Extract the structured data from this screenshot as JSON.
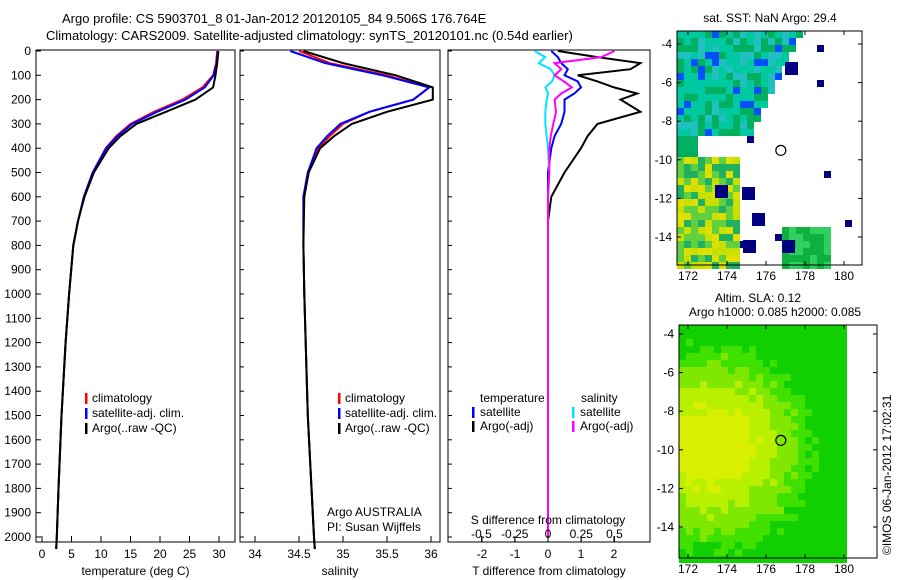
{
  "title": {
    "line1": "Argo profile: CS 5903701_8 01-Jan-2012 20120105_84 9.506S 176.764E",
    "line2": "Climatology: CARS2009. Satellite-adjusted climatology: synTS_20120101.nc (0.54d earlier)"
  },
  "colors": {
    "climatology": "#ff0000",
    "satellite": "#0000ff",
    "argo": "#000000",
    "sal_satellite": "#00e5ff",
    "sal_argo": "#ff00ff"
  },
  "chart_data": [
    {
      "type": "line",
      "id": "temp",
      "xlabel": "temperature (deg C)",
      "ylabel": "",
      "xlim": [
        -2,
        31
      ],
      "ylim": [
        2060,
        0
      ],
      "xticks": [
        0,
        5,
        10,
        15,
        20,
        25,
        30
      ],
      "yticks": [
        0,
        100,
        200,
        300,
        400,
        500,
        600,
        700,
        800,
        900,
        1000,
        1100,
        1200,
        1300,
        1400,
        1500,
        1600,
        1700,
        1800,
        1900,
        2000
      ],
      "legend": [
        "climatology",
        "satellite-adj. clim.",
        "Argo(..raw -QC)"
      ],
      "depth": [
        0,
        50,
        100,
        150,
        200,
        250,
        300,
        350,
        400,
        500,
        600,
        700,
        800,
        1000,
        1200,
        1500,
        1800,
        2000,
        2050
      ],
      "series": [
        {
          "name": "climatology",
          "color": "#ff0000",
          "values": [
            29.7,
            29.5,
            29,
            27.2,
            23.8,
            19,
            15,
            12.6,
            10.8,
            8.6,
            7.1,
            6.1,
            5.3,
            4.6,
            4,
            3.3,
            2.8,
            2.5,
            2.4
          ]
        },
        {
          "name": "satellite-adj. clim.",
          "color": "#0000ff",
          "values": [
            29.8,
            29.6,
            29.1,
            27.6,
            24.3,
            19.5,
            15.3,
            12.8,
            10.9,
            8.6,
            7.1,
            6.1,
            5.3,
            4.6,
            4,
            3.3,
            2.8,
            2.5,
            2.4
          ]
        },
        {
          "name": "Argo(..raw -QC)",
          "color": "#000000",
          "values": [
            29.9,
            29.7,
            29.4,
            29,
            26,
            21,
            16,
            13.3,
            11.3,
            8.8,
            7.2,
            6.1,
            5.3,
            4.6,
            4,
            3.3,
            2.8,
            2.5,
            2.4
          ]
        }
      ]
    },
    {
      "type": "line",
      "id": "sal",
      "xlabel": "salinity",
      "xlim": [
        33.85,
        36.05
      ],
      "ylim": [
        2060,
        0
      ],
      "xticks": [
        34,
        34.5,
        35,
        35.5,
        36
      ],
      "legend": [
        "climatology",
        "satellite-adj. clim.",
        "Argo(..raw -QC)"
      ],
      "annotation": [
        "Argo AUSTRALIA",
        "PI: Susan Wijffels"
      ],
      "depth": [
        0,
        50,
        100,
        150,
        200,
        250,
        300,
        350,
        400,
        500,
        600,
        800,
        1000,
        1500,
        2000,
        2050
      ],
      "series": [
        {
          "name": "climatology",
          "color": "#ff0000",
          "values": [
            34.5,
            34.85,
            35.5,
            35.98,
            35.8,
            35.3,
            35.0,
            34.85,
            34.72,
            34.6,
            34.55,
            34.55,
            34.56,
            34.6,
            34.67,
            34.68
          ]
        },
        {
          "name": "satellite-adj. clim.",
          "color": "#0000ff",
          "values": [
            34.4,
            34.8,
            35.45,
            35.98,
            35.8,
            35.3,
            34.97,
            34.82,
            34.7,
            34.6,
            34.55,
            34.55,
            34.56,
            34.6,
            34.67,
            34.68
          ]
        },
        {
          "name": "Argo(..raw -QC)",
          "color": "#000000",
          "values": [
            34.55,
            35.0,
            35.6,
            36.02,
            36.02,
            35.5,
            35.1,
            34.9,
            34.74,
            34.61,
            34.56,
            34.55,
            34.56,
            34.6,
            34.67,
            34.68
          ]
        }
      ]
    },
    {
      "type": "line",
      "id": "diff",
      "xlabel": "T difference from climatology",
      "x2label": "S difference from climatology",
      "xlim": [
        -3.1,
        3.1
      ],
      "xticks": [
        -2,
        -1,
        0,
        1,
        2
      ],
      "x2ticks": [
        -0.5,
        -0.25,
        0,
        0.25,
        0.5
      ],
      "x2labels": [
        "-0.5",
        "-0.25",
        "0",
        "0.25",
        "0.5"
      ],
      "ylim": [
        2060,
        0
      ],
      "legend_headers": [
        "temperature",
        "salinity"
      ],
      "legend": [
        "satellite",
        "Argo(-adj)",
        "satellite",
        "Argo(-adj)"
      ],
      "depth": [
        0,
        25,
        50,
        75,
        100,
        125,
        150,
        175,
        200,
        250,
        300,
        350,
        400,
        500,
        600,
        700,
        1000,
        1500,
        2000
      ],
      "series": [
        {
          "name": "T satellite",
          "color": "#0000ff",
          "values": [
            0.1,
            0.3,
            0.4,
            0.6,
            0.5,
            0.9,
            1.0,
            0.8,
            0.5,
            0.5,
            0.4,
            0.2,
            0.1,
            0,
            0,
            0,
            0,
            0,
            0
          ]
        },
        {
          "name": "T Argo(-adj)",
          "color": "#000000",
          "values": [
            0.3,
            1.5,
            2.8,
            2.5,
            0.9,
            1.5,
            2,
            2.7,
            2.2,
            2.8,
            1.5,
            1.2,
            1.0,
            0.5,
            0.1,
            0,
            0,
            0,
            0
          ]
        },
        {
          "name": "S satellite",
          "color": "#00e5ff",
          "values": [
            -0.1,
            -0.02,
            -0.07,
            0.02,
            0.05,
            0.03,
            -0.02,
            0,
            -0.01,
            -0.02,
            -0.02,
            -0.01,
            0,
            0.01,
            0,
            0,
            0,
            0,
            0
          ]
        },
        {
          "name": "S Argo(-adj)",
          "color": "#ff00ff",
          "values": [
            0.5,
            0.4,
            0.05,
            0.1,
            0.05,
            0.12,
            0.18,
            0.1,
            0.05,
            0.06,
            0.04,
            0.02,
            0.01,
            0.01,
            0,
            0,
            0,
            0,
            0
          ]
        }
      ]
    },
    {
      "type": "heatmap",
      "id": "sst",
      "title": "sat. SST: NaN Argo: 29.4",
      "xticks": [
        172,
        174,
        176,
        178,
        180
      ],
      "yticks": [
        -4,
        -6,
        -8,
        -10,
        -12,
        -14
      ],
      "marker": [
        176.76,
        -9.51
      ]
    },
    {
      "type": "heatmap",
      "id": "sla",
      "title": "Altim. SLA: 0.12",
      "subtitle": "Argo h1000: 0.085 h2000: 0.085",
      "xticks": [
        172,
        174,
        176,
        178,
        180
      ],
      "yticks": [
        -4,
        -6,
        -8,
        -10,
        -12,
        -14
      ],
      "marker": [
        176.76,
        -9.51
      ]
    }
  ],
  "footer": {
    "credit": "©IMOS 06-Jan-2012 17:02:31"
  }
}
